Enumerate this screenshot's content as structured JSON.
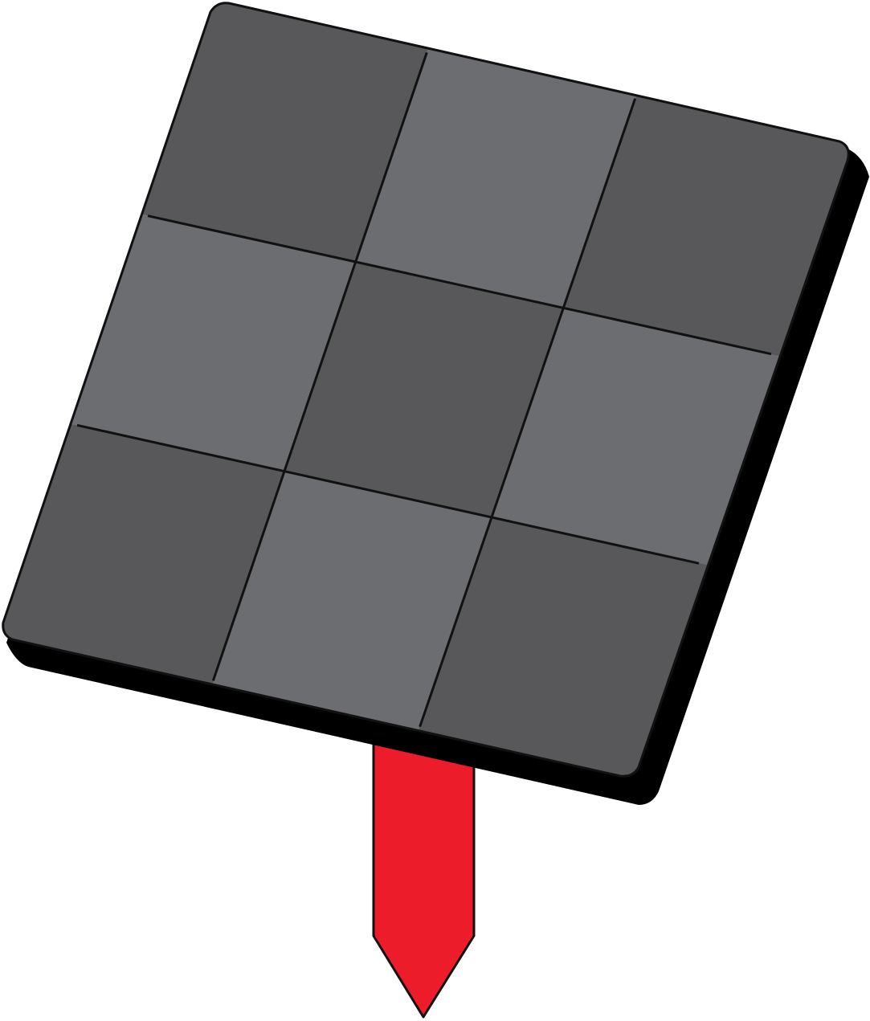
{
  "graphic": {
    "grid": {
      "rows": 3,
      "cols": 3,
      "cells": [
        [
          "dark",
          "light",
          "dark"
        ],
        [
          "light",
          "dark",
          "light"
        ],
        [
          "dark",
          "light",
          "dark"
        ]
      ]
    },
    "colors": {
      "dark": "#58585a",
      "light": "#6c6d71",
      "shadow": "#000000",
      "outline": "#111111",
      "stake": "#ed1c2b",
      "background": "#ffffff"
    },
    "icon": "checkered-sign-on-stake"
  }
}
